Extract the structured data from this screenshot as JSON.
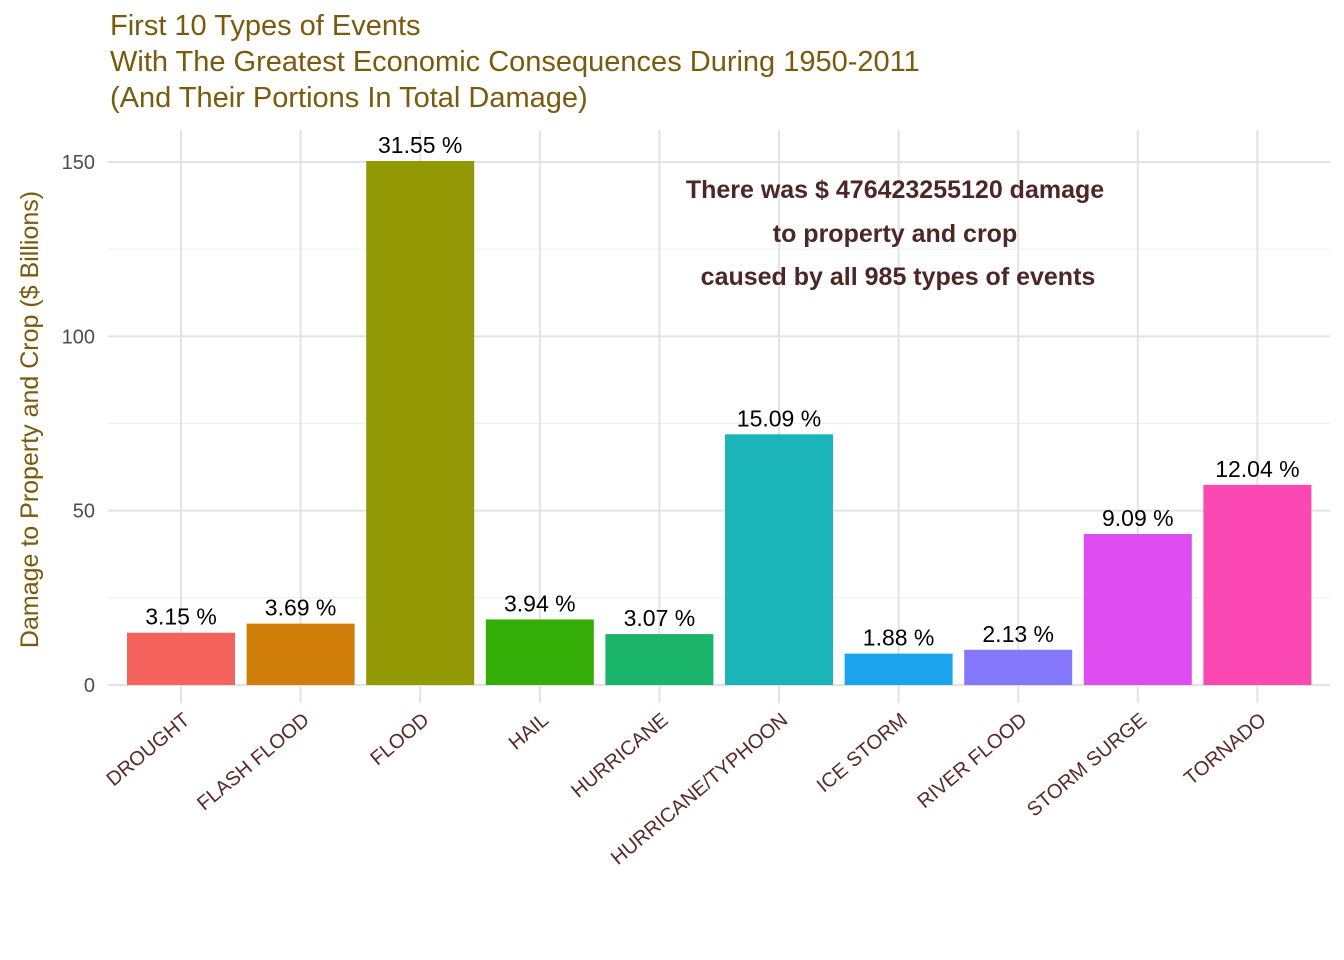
{
  "chart_data": {
    "type": "bar",
    "title_lines": [
      "First 10 Types of Events",
      "With The Greatest Economic Consequences During 1950-2011",
      "(And Their Portions In Total Damage)"
    ],
    "xlabel": "",
    "ylabel": "Damage to Property and Crop ($ Billions)",
    "ylim": [
      0,
      160
    ],
    "yticks": [
      0,
      50,
      100,
      150
    ],
    "grid": true,
    "categories": [
      "DROUGHT",
      "FLASH FLOOD",
      "FLOOD",
      "HAIL",
      "HURRICANE",
      "HURRICANE/TYPHOON",
      "ICE STORM",
      "RIVER FLOOD",
      "STORM SURGE",
      "TORNADO"
    ],
    "values": [
      15.0,
      17.6,
      150.3,
      18.8,
      14.6,
      71.9,
      9.0,
      10.1,
      43.3,
      57.4
    ],
    "data_labels": [
      "3.15 %",
      "3.69 %",
      "31.55 %",
      "3.94 %",
      "3.07 %",
      "15.09 %",
      "1.88 %",
      "2.13 %",
      "9.09 %",
      "12.04 %"
    ],
    "colors": [
      "#F8766D",
      "#D39200",
      "#93AA00",
      "#00BA38",
      "#00C19F",
      "#00B9E3",
      "#00A5FF",
      "#8E8BFF",
      "#DB72FB",
      "#FF61C3"
    ],
    "bar_colors_rendered": [
      "#f4625e",
      "#d07e09",
      "#939904",
      "#34ad06",
      "#1ab56b",
      "#1bb4b9",
      "#1ba3ee",
      "#8678fd",
      "#de4df0",
      "#fb48b3"
    ],
    "annotation_lines": [
      "There was $ 476423255120 damage",
      "to property and crop",
      "caused by all 985 types of events"
    ]
  }
}
